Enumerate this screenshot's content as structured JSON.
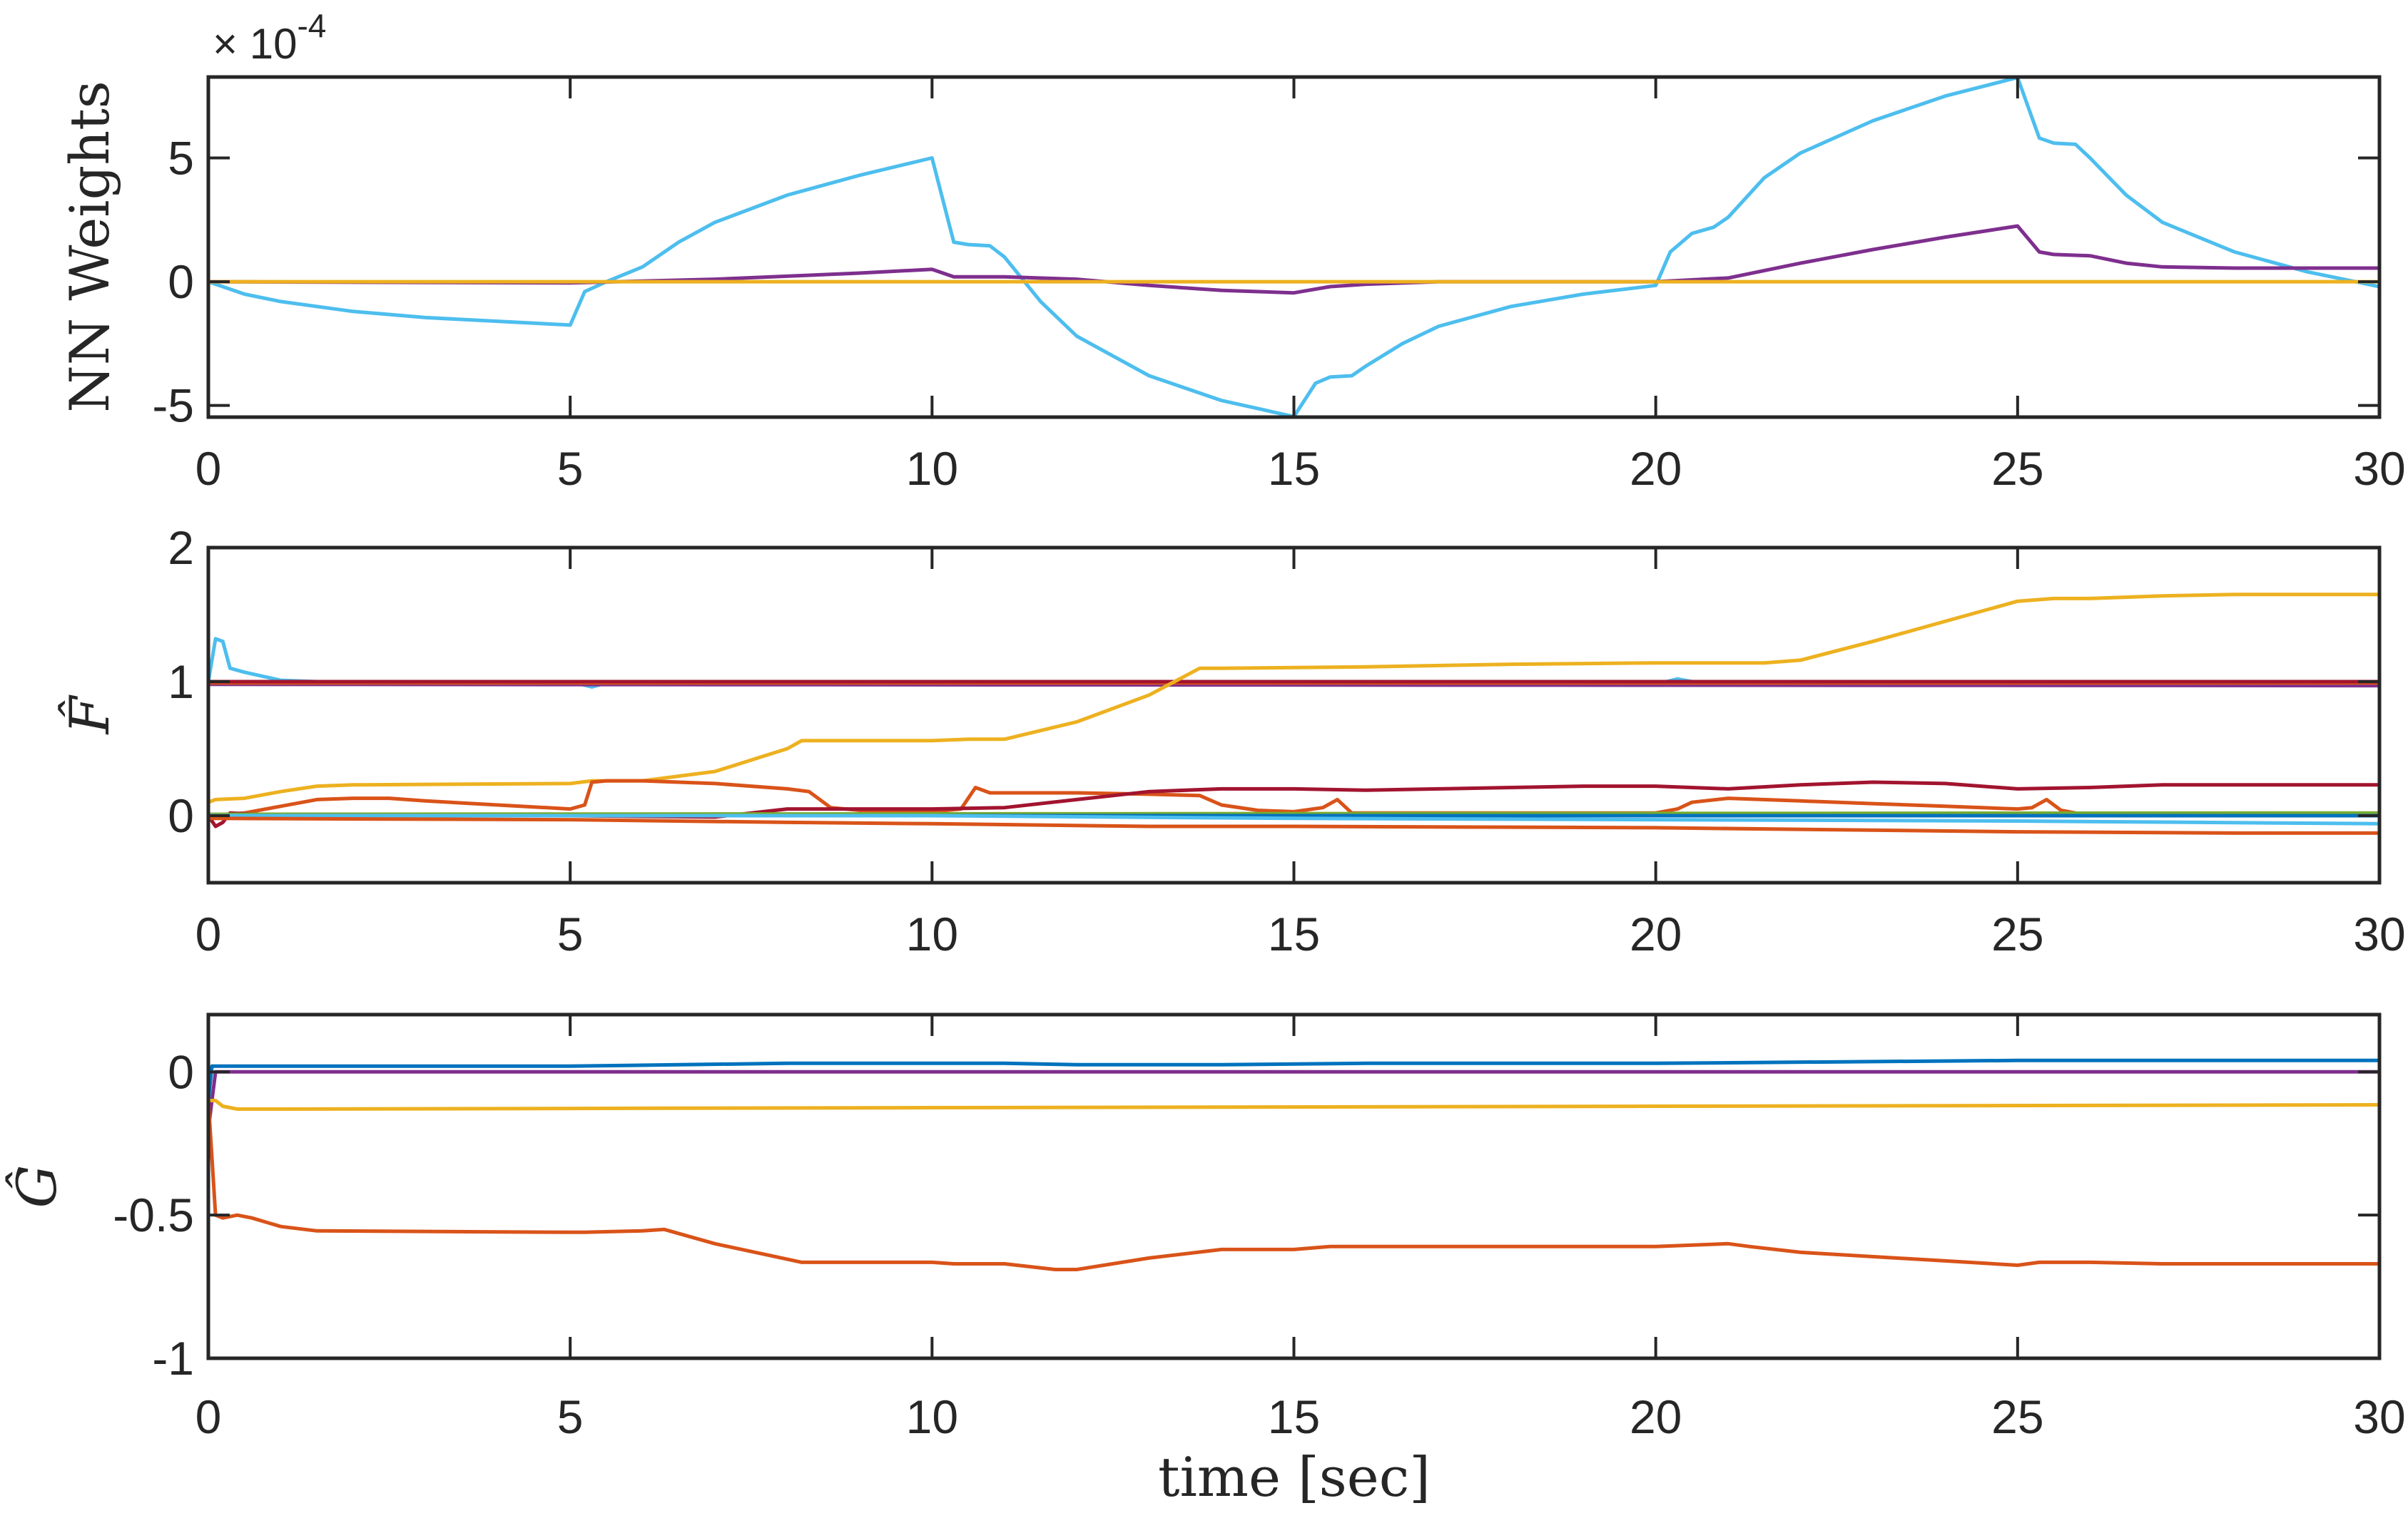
{
  "figure": {
    "xlabel": "time [sec]",
    "exponent_base": "× 10",
    "exponent_power": "-4"
  },
  "colors": {
    "axis": "#262626",
    "blue": "#0072BD",
    "orange": "#D95319",
    "yellow": "#EDB120",
    "purple": "#7E2F8E",
    "lightblue": "#4DBEEE",
    "darkred": "#A2142F",
    "green": "#77AC30"
  },
  "chart_data": [
    {
      "type": "line",
      "title": "",
      "ylabel": "NN Weights",
      "xlabel": "",
      "y_scale_note": "×10^-4",
      "xlim": [
        0,
        30
      ],
      "ylim": [
        -5.47,
        8.27
      ],
      "xticks": [
        0,
        5,
        10,
        15,
        20,
        25,
        30
      ],
      "yticks": [
        -5,
        0,
        5
      ],
      "ytick_labels": [
        "-5",
        "0",
        "5"
      ],
      "grid": false,
      "series": [
        {
          "name": "w1",
          "color": "#4DBEEE",
          "x": [
            0,
            0.5,
            1,
            2,
            3,
            4,
            5,
            5.2,
            5.5,
            6,
            6.5,
            7,
            8,
            9,
            10,
            10.3,
            10.5,
            10.8,
            11,
            11.5,
            12,
            13,
            14,
            15,
            15.3,
            15.5,
            15.8,
            16,
            16.5,
            17,
            18,
            19,
            20,
            20.2,
            20.5,
            20.8,
            21,
            21.5,
            22,
            23,
            24,
            25,
            25.3,
            25.5,
            25.8,
            26,
            26.5,
            27,
            28,
            29,
            30
          ],
          "y": [
            0,
            -0.5,
            -0.8,
            -1.2,
            -1.45,
            -1.6,
            -1.75,
            -0.4,
            0.0,
            0.6,
            1.6,
            2.4,
            3.5,
            4.3,
            5.0,
            1.6,
            1.5,
            1.45,
            1.0,
            -0.8,
            -2.2,
            -3.8,
            -4.8,
            -5.45,
            -4.1,
            -3.85,
            -3.8,
            -3.4,
            -2.5,
            -1.8,
            -1.0,
            -0.5,
            -0.15,
            1.2,
            1.95,
            2.2,
            2.6,
            4.2,
            5.2,
            6.5,
            7.5,
            8.25,
            5.8,
            5.6,
            5.55,
            5.0,
            3.5,
            2.4,
            1.2,
            0.4,
            -0.2
          ]
        },
        {
          "name": "w2",
          "color": "#7E2F8E",
          "x": [
            0,
            5,
            7,
            9,
            10,
            10.3,
            11,
            12,
            13,
            14,
            15,
            15.5,
            16,
            17,
            18,
            19,
            20,
            21,
            22,
            23,
            24,
            25,
            25.3,
            25.5,
            26,
            26.5,
            27,
            28,
            29,
            30
          ],
          "y": [
            0,
            -0.05,
            0.1,
            0.35,
            0.5,
            0.2,
            0.2,
            0.1,
            -0.15,
            -0.35,
            -0.45,
            -0.2,
            -0.1,
            0.0,
            0.0,
            0.0,
            0.0,
            0.15,
            0.75,
            1.3,
            1.8,
            2.25,
            1.2,
            1.1,
            1.05,
            0.75,
            0.6,
            0.55,
            0.55,
            0.55
          ]
        },
        {
          "name": "w3",
          "color": "#EDB120",
          "x": [
            0,
            30
          ],
          "y": [
            0,
            0
          ]
        }
      ]
    },
    {
      "type": "line",
      "title": "",
      "ylabel": "F̂",
      "xlabel": "",
      "xlim": [
        0,
        30
      ],
      "ylim": [
        -0.5,
        2
      ],
      "xticks": [
        0,
        5,
        10,
        15,
        20,
        25,
        30
      ],
      "yticks": [
        0,
        1,
        2
      ],
      "ytick_labels": [
        "0",
        "1",
        "2"
      ],
      "grid": false,
      "series": [
        {
          "name": "f_lightblue_1",
          "color": "#4DBEEE",
          "x": [
            0,
            0.1,
            0.2,
            0.3,
            0.5,
            1,
            1.5,
            5,
            5.3,
            5.5,
            10,
            20,
            20.3,
            20.5,
            30
          ],
          "y": [
            1.0,
            1.32,
            1.3,
            1.1,
            1.07,
            1.01,
            1.0,
            1.0,
            0.96,
            0.99,
            0.98,
            0.98,
            1.02,
            1.0,
            0.98
          ]
        },
        {
          "name": "f_purple",
          "color": "#7E2F8E",
          "x": [
            0,
            30
          ],
          "y": [
            0.98,
            0.97
          ]
        },
        {
          "name": "f_orange_1",
          "color": "#D95319",
          "x": [
            0,
            30
          ],
          "y": [
            0.99,
            0.99
          ]
        },
        {
          "name": "f_darkred_1",
          "color": "#A2142F",
          "x": [
            0,
            30
          ],
          "y": [
            1.0,
            1.0
          ]
        },
        {
          "name": "f_yellow",
          "color": "#EDB120",
          "x": [
            0,
            0.1,
            0.5,
            1,
            1.5,
            2,
            5,
            5.3,
            6,
            7,
            8,
            8.2,
            10,
            10.5,
            11,
            12,
            13,
            13.7,
            14,
            16,
            18,
            20,
            21,
            21.5,
            22,
            23,
            24,
            25,
            25.5,
            26,
            27,
            28,
            30
          ],
          "y": [
            0.1,
            0.12,
            0.13,
            0.18,
            0.22,
            0.23,
            0.24,
            0.26,
            0.26,
            0.33,
            0.5,
            0.56,
            0.56,
            0.57,
            0.57,
            0.7,
            0.9,
            1.1,
            1.1,
            1.11,
            1.13,
            1.14,
            1.14,
            1.14,
            1.16,
            1.3,
            1.45,
            1.6,
            1.62,
            1.62,
            1.64,
            1.65,
            1.65
          ]
        },
        {
          "name": "f_orange_2",
          "color": "#D95319",
          "x": [
            0,
            0.5,
            1,
            1.5,
            2,
            2.5,
            3,
            4,
            5,
            5.2,
            5.3,
            5.5,
            6,
            7,
            8,
            8.3,
            8.6,
            9,
            10,
            10.4,
            10.6,
            10.8,
            11,
            12,
            13,
            13.7,
            14,
            14.5,
            15,
            15.4,
            15.6,
            15.8,
            16,
            18,
            20,
            20.3,
            20.5,
            21,
            22,
            23,
            24,
            25,
            25.2,
            25.4,
            25.6,
            26,
            27,
            30
          ],
          "y": [
            0.0,
            0.02,
            0.07,
            0.12,
            0.13,
            0.13,
            0.11,
            0.08,
            0.05,
            0.08,
            0.25,
            0.26,
            0.26,
            0.24,
            0.2,
            0.18,
            0.06,
            0.04,
            0.03,
            0.05,
            0.21,
            0.17,
            0.17,
            0.17,
            0.16,
            0.15,
            0.08,
            0.04,
            0.03,
            0.06,
            0.12,
            0.02,
            0.02,
            0.02,
            0.02,
            0.05,
            0.1,
            0.13,
            0.11,
            0.09,
            0.07,
            0.05,
            0.06,
            0.12,
            0.04,
            0.0,
            0.0,
            0.0
          ]
        },
        {
          "name": "f_darkred_2",
          "color": "#A2142F",
          "x": [
            0,
            0.1,
            0.2,
            0.3,
            1,
            5,
            7,
            8,
            10,
            11,
            12,
            13,
            14,
            15,
            16,
            17,
            18,
            19,
            20,
            21,
            22,
            23,
            24,
            25,
            26,
            27,
            28,
            30
          ],
          "y": [
            0.0,
            -0.08,
            -0.05,
            0.02,
            0.0,
            0.0,
            -0.01,
            0.05,
            0.05,
            0.06,
            0.12,
            0.18,
            0.2,
            0.2,
            0.19,
            0.2,
            0.21,
            0.22,
            0.22,
            0.2,
            0.23,
            0.25,
            0.24,
            0.2,
            0.21,
            0.23,
            0.23,
            0.23
          ]
        },
        {
          "name": "f_green",
          "color": "#77AC30",
          "x": [
            0,
            30
          ],
          "y": [
            0.01,
            0.02
          ]
        },
        {
          "name": "f_blue",
          "color": "#0072BD",
          "x": [
            0,
            30
          ],
          "y": [
            0.0,
            0.0
          ]
        },
        {
          "name": "f_lightblue_2",
          "color": "#4DBEEE",
          "x": [
            0,
            10,
            15,
            20,
            25,
            30
          ],
          "y": [
            0.0,
            0.0,
            -0.02,
            -0.03,
            -0.04,
            -0.06
          ]
        },
        {
          "name": "f_orange_3",
          "color": "#D95319",
          "x": [
            0,
            5,
            8,
            10,
            13,
            15,
            20,
            25,
            28,
            30
          ],
          "y": [
            -0.02,
            -0.03,
            -0.05,
            -0.06,
            -0.08,
            -0.08,
            -0.09,
            -0.12,
            -0.13,
            -0.13
          ]
        }
      ]
    },
    {
      "type": "line",
      "title": "",
      "ylabel": "Ĝ",
      "xlabel": "time [sec]",
      "xlim": [
        0,
        30
      ],
      "ylim": [
        -1,
        0.2
      ],
      "xticks": [
        0,
        5,
        10,
        15,
        20,
        25,
        30
      ],
      "yticks": [
        -1,
        -0.5,
        0
      ],
      "ytick_labels": [
        "-1",
        "-0.5",
        "0"
      ],
      "grid": false,
      "series": [
        {
          "name": "g_blue",
          "color": "#0072BD",
          "x": [
            0,
            0.05,
            0.1,
            1,
            5,
            8,
            11,
            12,
            14,
            16,
            20,
            25,
            27,
            30
          ],
          "y": [
            -0.1,
            0.02,
            0.02,
            0.02,
            0.02,
            0.03,
            0.03,
            0.025,
            0.025,
            0.03,
            0.03,
            0.04,
            0.04,
            0.04
          ]
        },
        {
          "name": "g_purple",
          "color": "#7E2F8E",
          "x": [
            0,
            0.1,
            30
          ],
          "y": [
            -0.2,
            0.0,
            0.0
          ]
        },
        {
          "name": "g_yellow",
          "color": "#EDB120",
          "x": [
            0,
            0.1,
            0.2,
            0.4,
            1,
            10,
            20,
            30
          ],
          "y": [
            -0.1,
            -0.1,
            -0.12,
            -0.13,
            -0.13,
            -0.125,
            -0.12,
            -0.115
          ]
        },
        {
          "name": "g_orange",
          "color": "#D95319",
          "x": [
            0,
            0.1,
            0.2,
            0.4,
            0.6,
            1,
            1.5,
            5,
            5.2,
            6,
            6.3,
            7,
            8.2,
            10,
            10.3,
            11,
            11.7,
            12,
            13,
            14,
            15,
            15.5,
            16,
            20,
            21,
            21.3,
            22,
            24,
            25,
            25.3,
            26,
            27,
            30
          ],
          "y": [
            -0.1,
            -0.5,
            -0.51,
            -0.5,
            -0.51,
            -0.54,
            -0.555,
            -0.56,
            -0.56,
            -0.555,
            -0.55,
            -0.6,
            -0.665,
            -0.665,
            -0.67,
            -0.67,
            -0.69,
            -0.69,
            -0.65,
            -0.62,
            -0.62,
            -0.61,
            -0.61,
            -0.61,
            -0.6,
            -0.61,
            -0.63,
            -0.66,
            -0.675,
            -0.665,
            -0.665,
            -0.67,
            -0.67
          ]
        }
      ]
    }
  ]
}
